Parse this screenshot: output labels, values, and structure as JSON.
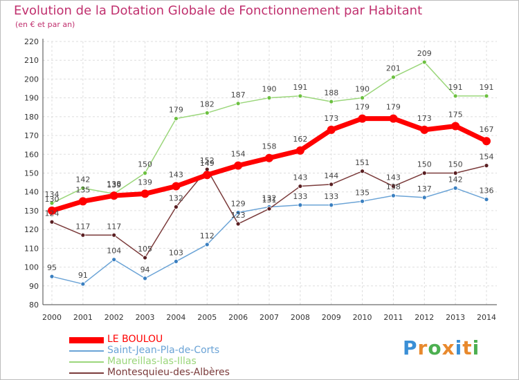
{
  "title": "Evolution de la Dotation Globale de Fonctionnement par Habitant",
  "subtitle": "(en € et par an)",
  "brand": {
    "letters": [
      "P",
      "r",
      "o",
      "x",
      "i",
      "t",
      "i"
    ],
    "letter_colors": [
      "#3a8fd6",
      "#e8892d",
      "#4caf50",
      "#e8892d",
      "#3a8fd6",
      "#e8892d",
      "#4caf50"
    ]
  },
  "chart_data": {
    "type": "line",
    "x": [
      2000,
      2001,
      2002,
      2003,
      2004,
      2005,
      2006,
      2007,
      2008,
      2009,
      2010,
      2011,
      2012,
      2013,
      2014
    ],
    "ylim": [
      80,
      220
    ],
    "yticks": [
      80,
      90,
      100,
      110,
      120,
      130,
      140,
      150,
      160,
      170,
      180,
      190,
      200,
      210,
      220
    ],
    "grid": true,
    "legend": "bottom-left",
    "series": [
      {
        "name": "Saint-Jean-Pla-de-Corts",
        "color": "#6aa3d6",
        "marker": "#3a7fc0",
        "values": [
          95,
          91,
          104,
          94,
          103,
          112,
          129,
          132,
          133,
          133,
          135,
          138,
          137,
          142,
          136
        ],
        "labels": [
          "95",
          "91",
          "104",
          "94",
          "103",
          "112",
          "129",
          "132",
          "133",
          "133",
          "135",
          "138",
          "137",
          "142",
          "136"
        ],
        "width": 1.5,
        "label_offset": [
          0,
          -9
        ]
      },
      {
        "name": "Maureillas-las-Illas",
        "color": "#9ad67a",
        "marker": "#6cc040",
        "values": [
          134,
          142,
          139,
          150,
          179,
          182,
          187,
          190,
          191,
          188,
          190,
          201,
          209,
          191,
          191
        ],
        "labels": [
          "134",
          "142",
          "139",
          "150",
          "179",
          "182",
          "187",
          "190",
          "191",
          "188",
          "190",
          "201",
          "209",
          "191",
          "191"
        ],
        "width": 1.5,
        "label_offset": [
          0,
          -9
        ]
      },
      {
        "name": "Montesquieu-des-Albères",
        "color": "#7a3a3a",
        "marker": "#5a1f22",
        "values": [
          124,
          117,
          117,
          105,
          132,
          152,
          123,
          131,
          143,
          144,
          151,
          143,
          150,
          150,
          154
        ],
        "labels": [
          "124",
          "117",
          "117",
          "105",
          "132",
          "152",
          "123",
          "131",
          "143",
          "144",
          "151",
          "143",
          "150",
          "150",
          "154"
        ],
        "width": 1.5,
        "label_offset": [
          0,
          -9
        ]
      },
      {
        "name": "LE BOULOU",
        "color": "#ff0000",
        "marker": "#ff0000",
        "values": [
          130,
          135,
          138,
          139,
          143,
          149,
          154,
          158,
          162,
          173,
          179,
          179,
          173,
          175,
          167
        ],
        "labels": [
          "130",
          "135",
          "138",
          "139",
          "143",
          "149",
          "154",
          "158",
          "162",
          "173",
          "179",
          "179",
          "173",
          "175",
          "167"
        ],
        "width": 7,
        "label_offset": [
          0,
          -13
        ]
      }
    ],
    "legend_order": [
      "LE BOULOU",
      "Saint-Jean-Pla-de-Corts",
      "Maureillas-las-Illas",
      "Montesquieu-des-Albères"
    ]
  }
}
